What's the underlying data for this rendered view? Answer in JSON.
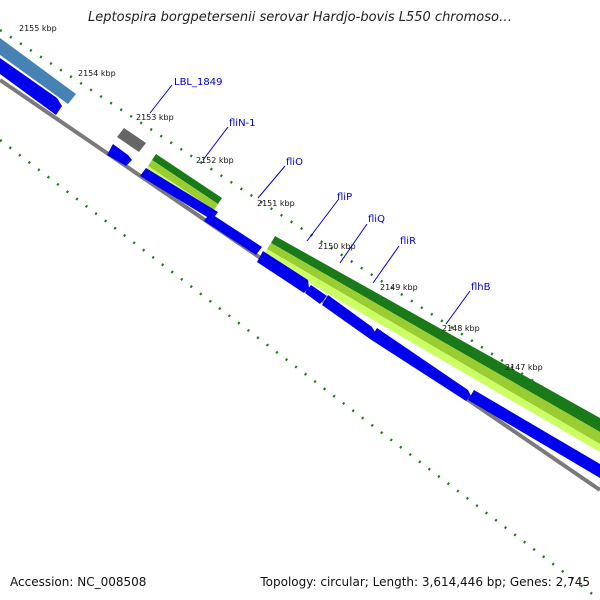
{
  "title": "Leptospira borgpetersenii serovar Hardjo-bovis L550 chromoso…",
  "footer": {
    "accession": "Accession: NC_008508",
    "stats": "Topology: circular; Length: 3,614,446 bp; Genes: 2,745"
  },
  "scale_labels": [
    "2155 kbp",
    "2154 kbp",
    "2153 kbp",
    "2152 kbp",
    "2151 kbp",
    "2150 kbp",
    "2149 kbp",
    "2148 kbp",
    "2147 kbp"
  ],
  "gene_labels": [
    "LBL_1849",
    "fliN-1",
    "fliO",
    "fliP",
    "fliQ",
    "fliR",
    "flhB"
  ],
  "colors": {
    "backbone": "#7a7a7a",
    "cds": "#0000ee",
    "cds_other_strand": "#4682b4",
    "pseudo": "#666666",
    "feature_dark": "#1a7a1a",
    "feature_mid": "#9acd32",
    "feature_light": "#ccff66",
    "tick": "#1a7a1a",
    "label": "#0000cc"
  }
}
